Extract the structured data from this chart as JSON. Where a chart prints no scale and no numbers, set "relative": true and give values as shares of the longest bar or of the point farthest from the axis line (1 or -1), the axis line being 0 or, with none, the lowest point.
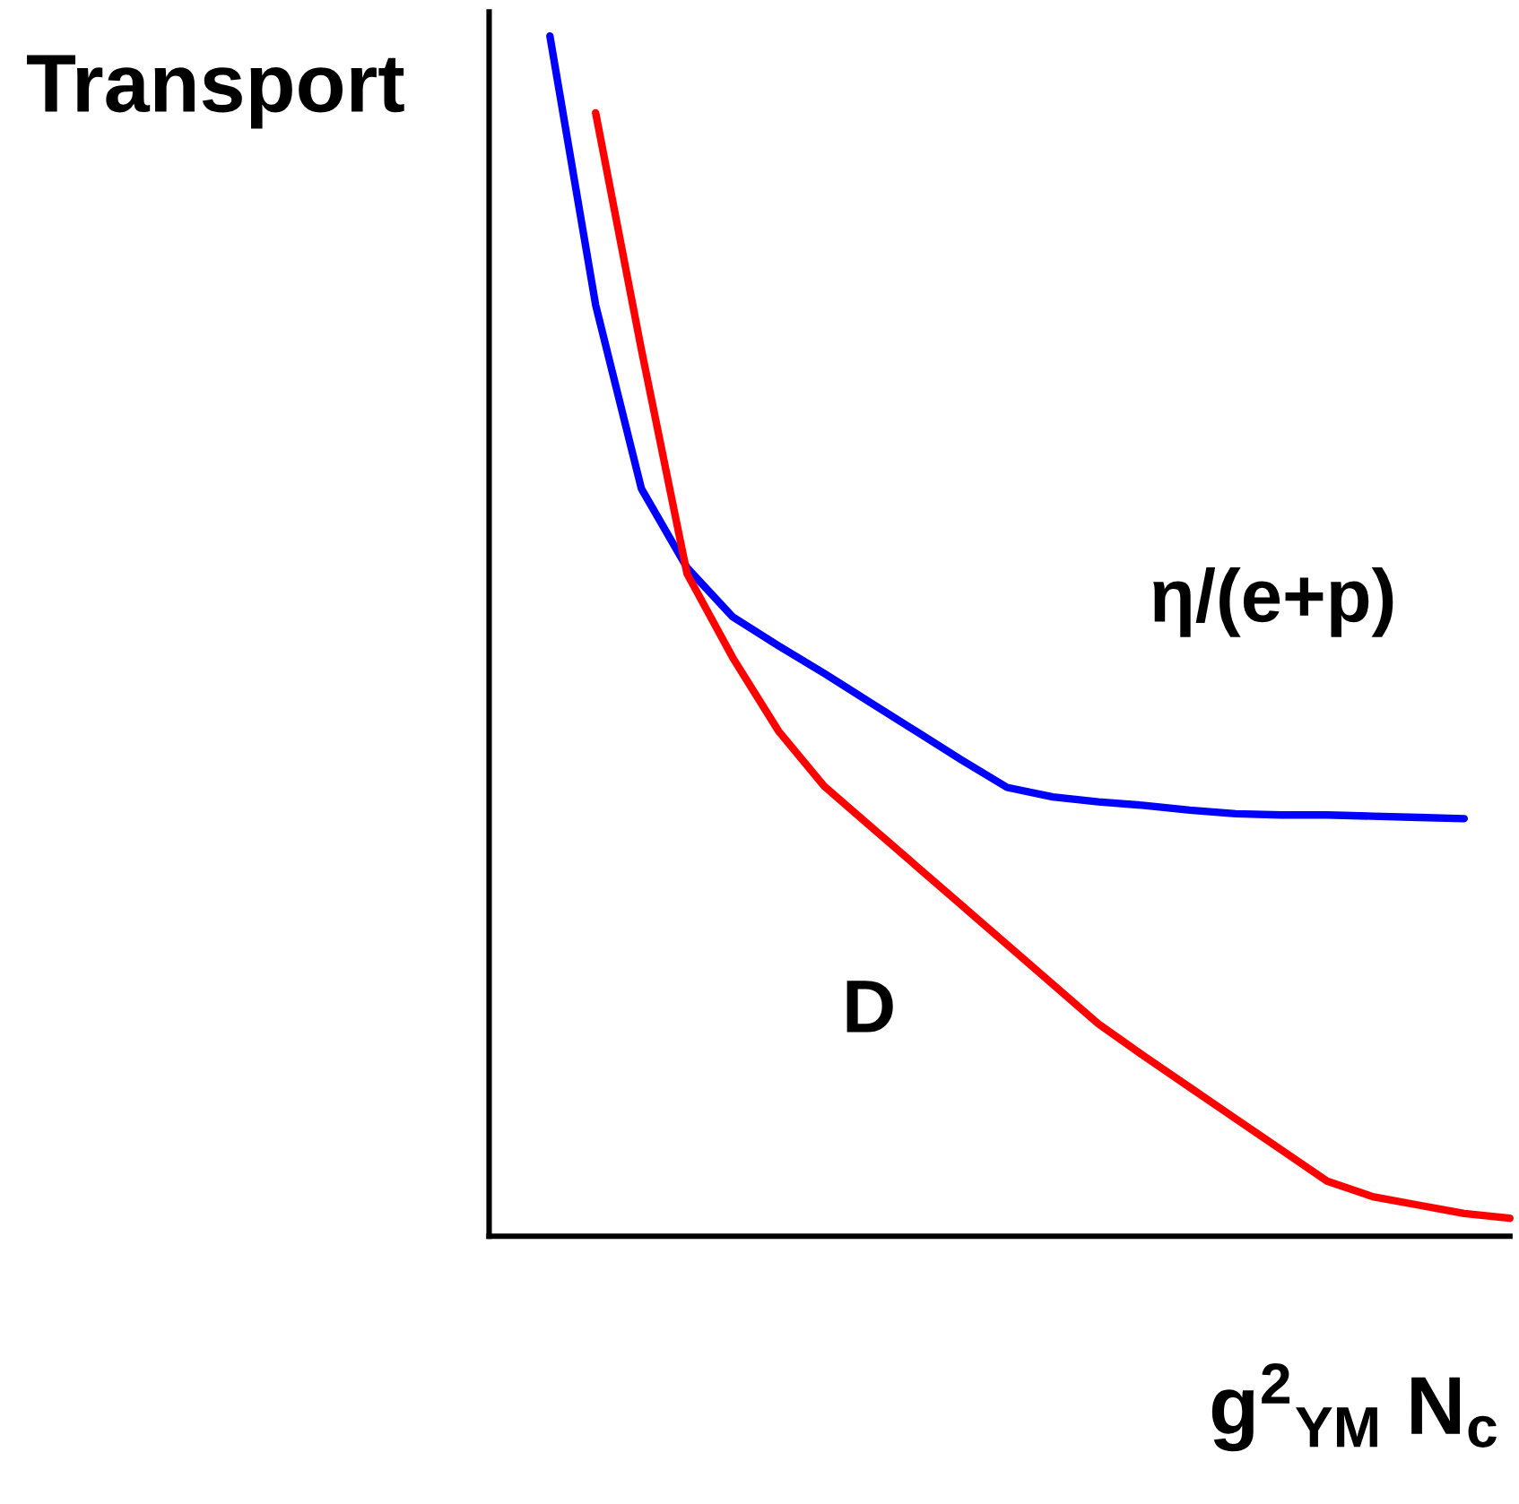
{
  "chart_data": {
    "type": "line",
    "relative": true,
    "legend": false,
    "marker": "none",
    "line_style": "solid",
    "xlabel": "g$^{2}$$_{YM}$ N$_{c}$",
    "ylabel": "Transport",
    "categories": [
      null,
      null,
      null,
      null,
      null,
      null,
      null,
      null,
      null,
      null,
      null,
      null,
      null,
      null,
      null,
      null,
      null,
      null,
      null,
      null,
      null,
      null
    ],
    "series": [
      {
        "name": "η/(e+p)",
        "color": "#0000ff",
        "values": [
          1,
          0.776,
          0.623,
          0.557,
          0.516,
          0.492,
          0.469,
          0.445,
          0.421,
          0.397,
          0.374,
          0.366,
          0.362,
          0.359,
          0.355,
          0.352,
          0.351,
          0.351,
          0.35,
          0.349,
          0.348,
          null
        ]
      },
      {
        "name": "D",
        "color": "#ff0000",
        "values": [
          null,
          0.936,
          0.739,
          0.552,
          0.482,
          0.421,
          0.375,
          0.342,
          0.309,
          0.276,
          0.243,
          0.21,
          0.177,
          0.15,
          0.124,
          0.098,
          0.072,
          0.046,
          0.033,
          0.026,
          0.019,
          0.015
        ]
      }
    ]
  }
}
